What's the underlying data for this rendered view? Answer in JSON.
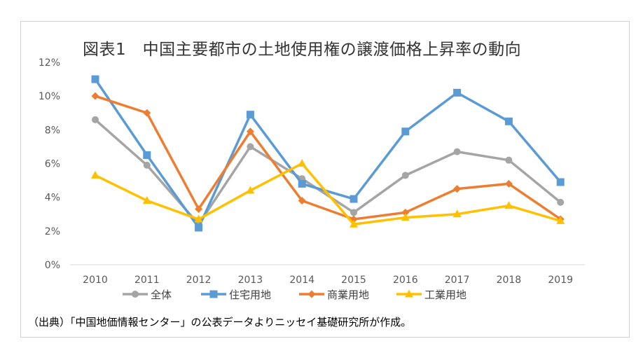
{
  "chart_data": {
    "type": "line",
    "title": "図表1　中国主要都市の土地使用権の譲渡価格上昇率の動向",
    "xlabel": "",
    "ylabel": "",
    "categories": [
      "2010",
      "2011",
      "2012",
      "2013",
      "2014",
      "2015",
      "2016",
      "2017",
      "2018",
      "2019"
    ],
    "ylim": [
      0,
      12
    ],
    "yticks": [
      0,
      2,
      4,
      6,
      8,
      10,
      12
    ],
    "ytick_labels": [
      "0%",
      "2%",
      "4%",
      "6%",
      "8%",
      "10%",
      "12%"
    ],
    "unit": "%",
    "grid": false,
    "legend_position": "bottom",
    "series": [
      {
        "name": "全体",
        "color": "#a5a5a5",
        "marker": "circle",
        "values": [
          8.6,
          5.9,
          2.4,
          7.0,
          5.1,
          3.1,
          5.3,
          6.7,
          6.2,
          3.7
        ]
      },
      {
        "name": "住宅用地",
        "color": "#5b9bd5",
        "marker": "square",
        "values": [
          11.0,
          6.5,
          2.2,
          8.9,
          4.8,
          3.9,
          7.9,
          10.2,
          8.5,
          4.9
        ]
      },
      {
        "name": "商業用地",
        "color": "#ed7d31",
        "marker": "diamond",
        "values": [
          10.0,
          9.0,
          3.3,
          7.9,
          3.8,
          2.7,
          3.1,
          4.5,
          4.8,
          2.7
        ]
      },
      {
        "name": "工業用地",
        "color": "#ffc000",
        "marker": "triangle",
        "values": [
          5.3,
          3.8,
          2.7,
          4.4,
          6.0,
          2.4,
          2.8,
          3.0,
          3.5,
          2.6
        ]
      }
    ]
  },
  "source": "（出典）「中国地価情報センター」の公表データよりニッセイ基礎研究所が作成。"
}
